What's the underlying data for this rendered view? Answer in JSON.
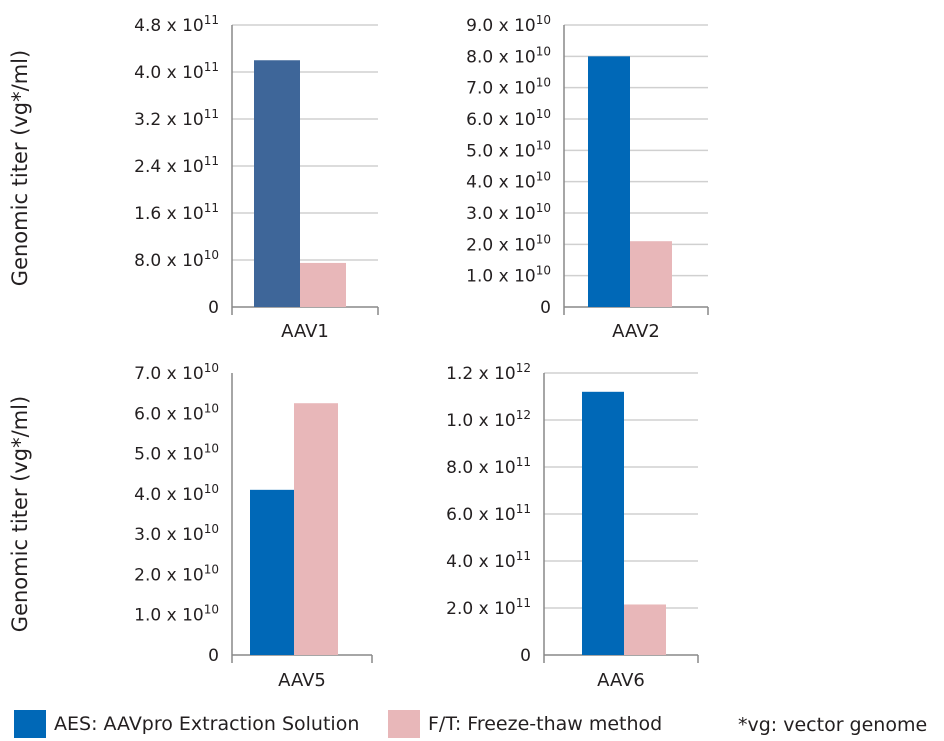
{
  "y_axis_label": "Genomic titer (vg*/ml)",
  "colors": {
    "aes": "#0068b7",
    "aes_aav1": "#3e6699",
    "ft": "#e8b7b9",
    "grid": "#d0d0d0",
    "axis": "#888888"
  },
  "legend": {
    "aes": "AES: AAVpro Extraction Solution",
    "ft": "F/T: Freeze-thaw method",
    "note": "*vg: vector genome"
  },
  "chart_data": [
    {
      "type": "bar",
      "categories": [
        "AAV1"
      ],
      "series": [
        {
          "name": "AES: AAVpro Extraction Solution",
          "values": [
            420000000000
          ]
        },
        {
          "name": "F/T: Freeze-thaw method",
          "values": [
            75000000000
          ]
        }
      ],
      "ylim": [
        0,
        480000000000
      ],
      "yticks": [
        0,
        80000000000,
        160000000000,
        240000000000,
        320000000000,
        400000000000,
        480000000000
      ],
      "ytick_labels": [
        {
          "m": "0",
          "e": ""
        },
        {
          "m": "8.0 x 10",
          "e": "10"
        },
        {
          "m": "1.6 x 10",
          "e": "11"
        },
        {
          "m": "2.4 x 10",
          "e": "11"
        },
        {
          "m": "3.2 x 10",
          "e": "11"
        },
        {
          "m": "4.0 x 10",
          "e": "11"
        },
        {
          "m": "4.8 x 10",
          "e": "11"
        }
      ],
      "ylabel": "Genomic titer (vg*/ml)",
      "grid": true
    },
    {
      "type": "bar",
      "categories": [
        "AAV2"
      ],
      "series": [
        {
          "name": "AES: AAVpro Extraction Solution",
          "values": [
            80000000000
          ]
        },
        {
          "name": "F/T: Freeze-thaw method",
          "values": [
            21000000000
          ]
        }
      ],
      "ylim": [
        0,
        90000000000
      ],
      "yticks": [
        0,
        10000000000,
        20000000000,
        30000000000,
        40000000000,
        50000000000,
        60000000000,
        70000000000,
        80000000000,
        90000000000
      ],
      "ytick_labels": [
        {
          "m": "0",
          "e": ""
        },
        {
          "m": "1.0 x 10",
          "e": "10"
        },
        {
          "m": "2.0 x 10",
          "e": "10"
        },
        {
          "m": "3.0 x 10",
          "e": "10"
        },
        {
          "m": "4.0 x 10",
          "e": "10"
        },
        {
          "m": "5.0 x 10",
          "e": "10"
        },
        {
          "m": "6.0 x 10",
          "e": "10"
        },
        {
          "m": "7.0 x 10",
          "e": "10"
        },
        {
          "m": "8.0 x 10",
          "e": "10"
        },
        {
          "m": "9.0 x 10",
          "e": "10"
        }
      ],
      "ylabel": "",
      "grid": true
    },
    {
      "type": "bar",
      "categories": [
        "AAV5"
      ],
      "series": [
        {
          "name": "AES: AAVpro Extraction Solution",
          "values": [
            41000000000
          ]
        },
        {
          "name": "F/T: Freeze-thaw method",
          "values": [
            62500000000
          ]
        }
      ],
      "ylim": [
        0,
        70000000000
      ],
      "yticks": [
        0,
        10000000000,
        20000000000,
        30000000000,
        40000000000,
        50000000000,
        60000000000,
        70000000000
      ],
      "ytick_labels": [
        {
          "m": "0",
          "e": ""
        },
        {
          "m": "1.0 x 10",
          "e": "10"
        },
        {
          "m": "2.0 x 10",
          "e": "10"
        },
        {
          "m": "3.0 x 10",
          "e": "10"
        },
        {
          "m": "4.0 x 10",
          "e": "10"
        },
        {
          "m": "5.0 x 10",
          "e": "10"
        },
        {
          "m": "6.0 x 10",
          "e": "10"
        },
        {
          "m": "7.0 x 10",
          "e": "10"
        }
      ],
      "ylabel": "Genomic titer (vg*/ml)",
      "grid": false
    },
    {
      "type": "bar",
      "categories": [
        "AAV6"
      ],
      "series": [
        {
          "name": "AES: AAVpro Extraction Solution",
          "values": [
            1120000000000
          ]
        },
        {
          "name": "F/T: Freeze-thaw method",
          "values": [
            215000000000
          ]
        }
      ],
      "ylim": [
        0,
        1200000000000
      ],
      "yticks": [
        0,
        200000000000,
        400000000000,
        600000000000,
        800000000000,
        1000000000000,
        1200000000000
      ],
      "ytick_labels": [
        {
          "m": "0",
          "e": ""
        },
        {
          "m": "2.0 x 10",
          "e": "11"
        },
        {
          "m": "4.0 x 10",
          "e": "11"
        },
        {
          "m": "6.0 x 10",
          "e": "11"
        },
        {
          "m": "8.0 x 10",
          "e": "11"
        },
        {
          "m": "1.0 x 10",
          "e": "12"
        },
        {
          "m": "1.2 x 10",
          "e": "12"
        }
      ],
      "ylabel": "",
      "grid": true
    }
  ]
}
